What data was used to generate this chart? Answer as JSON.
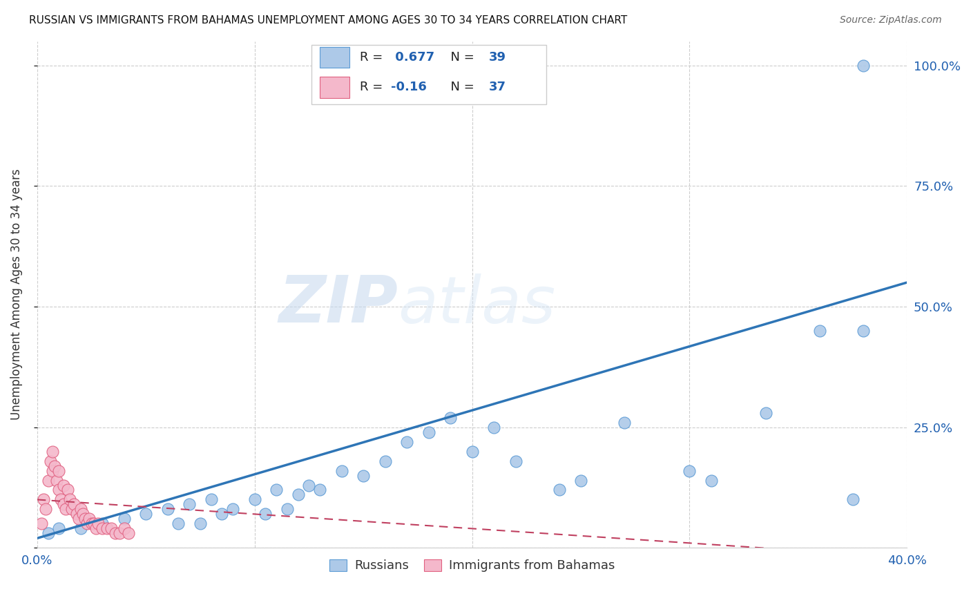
{
  "title": "RUSSIAN VS IMMIGRANTS FROM BAHAMAS UNEMPLOYMENT AMONG AGES 30 TO 34 YEARS CORRELATION CHART",
  "source": "Source: ZipAtlas.com",
  "ylabel": "Unemployment Among Ages 30 to 34 years",
  "xlim": [
    0.0,
    0.4
  ],
  "ylim": [
    0.0,
    1.05
  ],
  "xtick_positions": [
    0.0,
    0.1,
    0.2,
    0.3,
    0.4
  ],
  "xticklabels": [
    "0.0%",
    "",
    "",
    "",
    "40.0%"
  ],
  "ytick_positions": [
    0.0,
    0.25,
    0.5,
    0.75,
    1.0
  ],
  "yticklabels": [
    "",
    "25.0%",
    "50.0%",
    "75.0%",
    "100.0%"
  ],
  "legend_blue_label": "Russians",
  "legend_pink_label": "Immigrants from Bahamas",
  "r_blue": 0.677,
  "n_blue": 39,
  "r_pink": -0.16,
  "n_pink": 37,
  "blue_color": "#adc9e8",
  "blue_edge_color": "#5b9bd5",
  "blue_line_color": "#2e75b6",
  "pink_color": "#f4b8cb",
  "pink_edge_color": "#e06080",
  "pink_line_color": "#c04060",
  "watermark_zip": "ZIP",
  "watermark_atlas": "atlas",
  "background_color": "#ffffff",
  "grid_color": "#c8c8c8",
  "blue_scatter_x": [
    0.005,
    0.01,
    0.02,
    0.03,
    0.04,
    0.05,
    0.06,
    0.065,
    0.07,
    0.075,
    0.08,
    0.085,
    0.09,
    0.1,
    0.105,
    0.11,
    0.115,
    0.12,
    0.125,
    0.13,
    0.14,
    0.15,
    0.16,
    0.17,
    0.18,
    0.19,
    0.2,
    0.21,
    0.22,
    0.24,
    0.25,
    0.27,
    0.3,
    0.31,
    0.335,
    0.36,
    0.375,
    0.38,
    0.38
  ],
  "blue_scatter_y": [
    0.03,
    0.04,
    0.04,
    0.05,
    0.06,
    0.07,
    0.08,
    0.05,
    0.09,
    0.05,
    0.1,
    0.07,
    0.08,
    0.1,
    0.07,
    0.12,
    0.08,
    0.11,
    0.13,
    0.12,
    0.16,
    0.15,
    0.18,
    0.22,
    0.24,
    0.27,
    0.2,
    0.25,
    0.18,
    0.12,
    0.14,
    0.26,
    0.16,
    0.14,
    0.28,
    0.45,
    0.1,
    0.45,
    1.0
  ],
  "pink_scatter_x": [
    0.002,
    0.003,
    0.004,
    0.005,
    0.006,
    0.007,
    0.007,
    0.008,
    0.009,
    0.01,
    0.01,
    0.011,
    0.012,
    0.012,
    0.013,
    0.014,
    0.015,
    0.016,
    0.017,
    0.018,
    0.019,
    0.02,
    0.021,
    0.022,
    0.023,
    0.024,
    0.025,
    0.026,
    0.027,
    0.028,
    0.03,
    0.032,
    0.034,
    0.036,
    0.038,
    0.04,
    0.042
  ],
  "pink_scatter_y": [
    0.05,
    0.1,
    0.08,
    0.14,
    0.18,
    0.16,
    0.2,
    0.17,
    0.14,
    0.12,
    0.16,
    0.1,
    0.09,
    0.13,
    0.08,
    0.12,
    0.1,
    0.08,
    0.09,
    0.07,
    0.06,
    0.08,
    0.07,
    0.06,
    0.05,
    0.06,
    0.05,
    0.05,
    0.04,
    0.05,
    0.04,
    0.04,
    0.04,
    0.03,
    0.03,
    0.04,
    0.03
  ],
  "blue_line_x": [
    0.0,
    0.4
  ],
  "blue_line_y": [
    0.02,
    0.55
  ],
  "pink_line_x": [
    0.0,
    0.4
  ],
  "pink_line_y": [
    0.1,
    -0.02
  ],
  "title_fontsize": 11,
  "source_fontsize": 10,
  "tick_fontsize": 13,
  "ylabel_fontsize": 12
}
